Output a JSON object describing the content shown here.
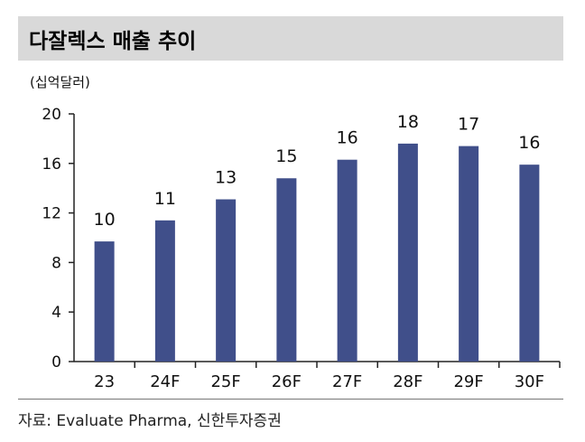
{
  "title": "다잘렉스 매출 추이",
  "unit_label": "(십억달러)",
  "source": "자료: Evaluate Pharma, 신한투자증권",
  "colors": {
    "bar": "#404f8a",
    "title_bg": "#d9d9d9"
  },
  "chart_data": {
    "type": "bar",
    "title": "다잘렉스 매출 추이",
    "ylabel": "(십억달러)",
    "xlabel": "",
    "categories": [
      "23",
      "24F",
      "25F",
      "26F",
      "27F",
      "28F",
      "29F",
      "30F"
    ],
    "values": [
      9.7,
      11.4,
      13.1,
      14.8,
      16.3,
      17.6,
      17.4,
      15.9
    ],
    "data_labels": [
      "10",
      "11",
      "13",
      "15",
      "16",
      "18",
      "17",
      "16"
    ],
    "ylim": [
      0,
      20
    ],
    "yticks": [
      0,
      4,
      8,
      12,
      16,
      20
    ],
    "grid": false,
    "legend": "none"
  }
}
